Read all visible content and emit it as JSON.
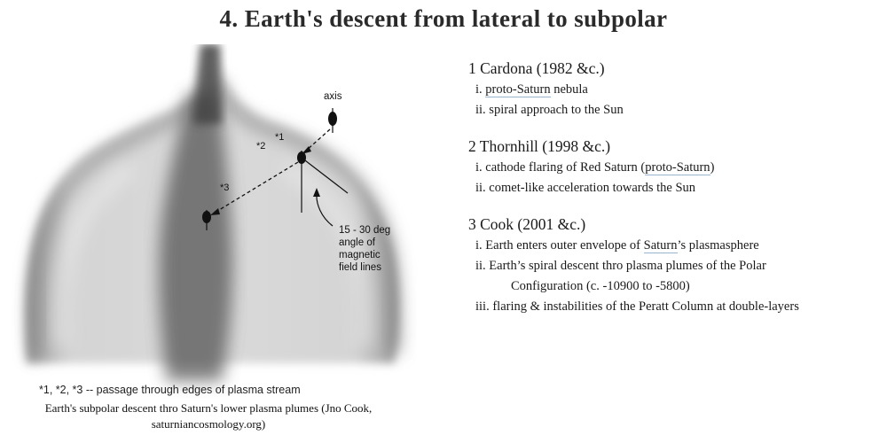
{
  "title": "4. Earth's descent from lateral to subpolar",
  "figure": {
    "labels": {
      "axis": "axis",
      "star1": "*1",
      "star2": "*2",
      "star3": "*3",
      "angle_line1": "15 - 30 deg",
      "angle_line2": "angle of",
      "angle_line3": "magnetic",
      "angle_line4": "field lines"
    },
    "note": "*1, *2, *3 -- passage through edges of plasma stream",
    "caption_line1": "Earth's subpolar descent thro Saturn's lower plasma plumes (Jno Cook,",
    "caption_line2": "saturniancosmology.org)"
  },
  "outline": {
    "cardona": {
      "title": "1 Cardona (1982 &c.)",
      "i_prefix": "i. ",
      "i_link": "proto-Saturn",
      "i_suffix": " nebula",
      "ii": "ii. spiral approach to the Sun"
    },
    "thornhill": {
      "title": "2 Thornhill (1998 &c.)",
      "i_prefix": "i. cathode flaring of Red Saturn (",
      "i_link": "proto-Saturn",
      "i_suffix": ")",
      "ii": "ii. comet-like acceleration towards the Sun"
    },
    "cook": {
      "title": "3 Cook (2001 &c.)",
      "i_prefix": "i. Earth enters outer envelope of ",
      "i_link": "Saturn",
      "i_suffix": "’s plasmasphere",
      "ii_line1": "ii. Earth’s spiral descent thro plasma plumes of the Polar",
      "ii_line2": "Configuration (c. -10900 to -5800)",
      "iii": "iii. flaring & instabilities of the Peratt Column at double-layers"
    }
  },
  "colors": {
    "text": "#1c1c1c",
    "link_underline": "#9ab4cf",
    "plume_dark": "#4a4a4a"
  }
}
